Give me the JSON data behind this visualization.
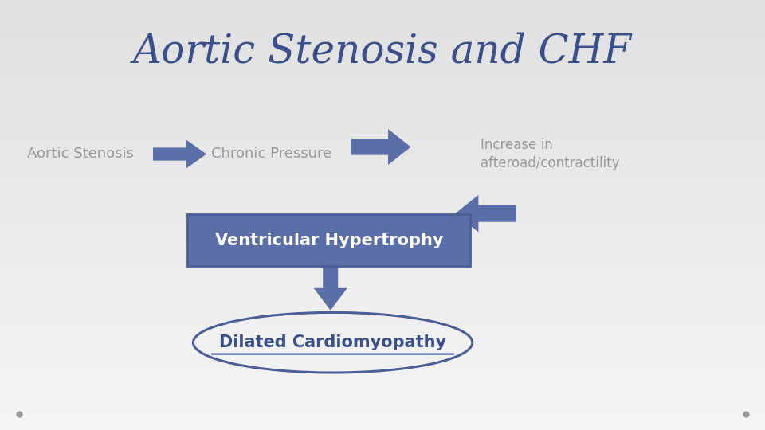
{
  "title": "Aortic Stenosis and CHF",
  "title_color": "#3a4f8c",
  "title_fontsize": 36,
  "bg_color": "#ececec",
  "arrow_color": "#5a6fa8",
  "arrow_color_dark": "#4a5f98",
  "box_color": "#5a6fa8",
  "box_text": "Ventricular Hypertrophy",
  "box_text_color": "#ffffff",
  "ellipse_text": "Dilated Cardiomyopathy",
  "ellipse_border_color": "#4a5f98",
  "ellipse_text_color": "#3a4f8c",
  "label1": "Aortic Stenosis",
  "label2": "Chronic Pressure",
  "label3": "Increase in\nafteroad/contractility",
  "label_color": "#999999",
  "dot_color": "#999999"
}
